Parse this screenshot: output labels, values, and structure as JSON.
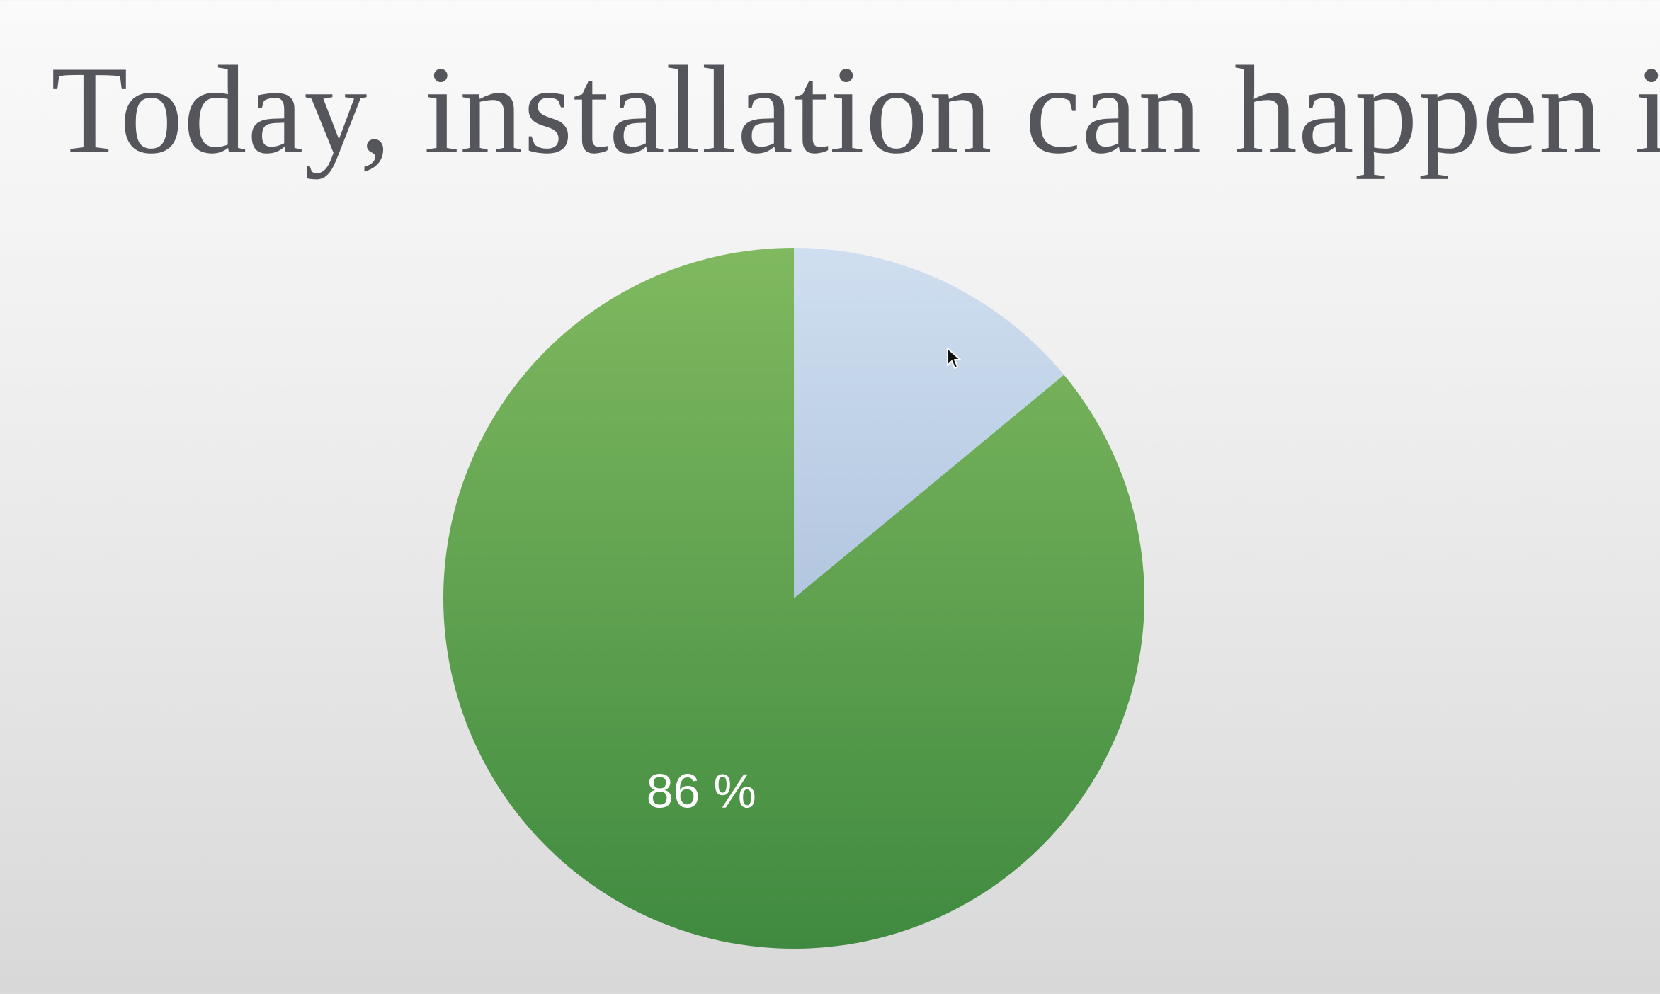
{
  "slide": {
    "title": "Today, installation can happen in"
  },
  "chart_data": {
    "type": "pie",
    "title": "Today, installation can happen in",
    "slices": [
      {
        "value": 14,
        "label": "",
        "color": "#c3d4e8"
      },
      {
        "value": 86,
        "label": "86 %",
        "color": "#5ea34f"
      }
    ],
    "start_angle_deg": 0,
    "direction": "clockwise"
  },
  "colors": {
    "title_text": "#55565b",
    "green_top": "#80b95f",
    "green_bottom": "#3f8a40",
    "blue_top": "#cfdff0",
    "blue_bottom": "#b2c6df",
    "label_text": "#ffffff"
  },
  "icons": {
    "cursor": "arrow-pointer-icon"
  }
}
